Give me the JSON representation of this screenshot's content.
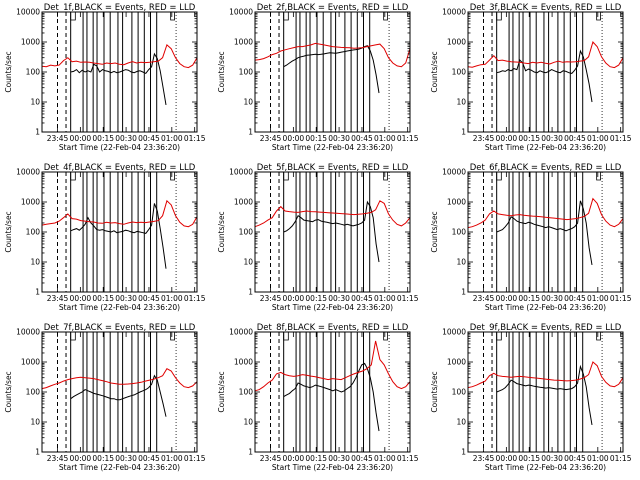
{
  "chart_data": [
    {
      "type": "line",
      "title": "Det_1f,BLACK = Events, RED = LLD",
      "xlabel": "Start Time (22-Feb-04 23:36:20)",
      "ylabel": "Counts/sec",
      "x_ticks": [
        "23:45",
        "00:00",
        "00:15",
        "00:30",
        "00:45",
        "01:00",
        "01:15"
      ],
      "y_ticks": [
        "1",
        "10",
        "100",
        "1000",
        "10000"
      ],
      "ylim": [
        1,
        10000
      ],
      "y_scale": "log",
      "series": [
        {
          "color": "#000000",
          "values": [
            100,
            105,
            120,
            95,
            115,
            100,
            110,
            100,
            180,
            160,
            100,
            120,
            110,
            105,
            95,
            105,
            95,
            100,
            110,
            120,
            115,
            100,
            95,
            105,
            110,
            100,
            90,
            120,
            150,
            400,
            280,
            110,
            30,
            8
          ]
        },
        {
          "color": "#e00000",
          "values": [
            155,
            150,
            170,
            160,
            170,
            240,
            300,
            220,
            230,
            210,
            215,
            210,
            200,
            190,
            180,
            200,
            190,
            200,
            180,
            175,
            200,
            220,
            200,
            210,
            205,
            210,
            220,
            230,
            300,
            800,
            600,
            300,
            190,
            150,
            140,
            170,
            300
          ]
        }
      ]
    },
    {
      "type": "line",
      "title": "Det_2f,BLACK = Events, RED = LLD",
      "xlabel": "Start Time (22-Feb-04 23:36:20)",
      "ylabel": "Counts/sec",
      "x_ticks": [
        "23:45",
        "00:00",
        "00:15",
        "00:30",
        "00:45",
        "01:00",
        "01:15"
      ],
      "y_ticks": [
        "1",
        "10",
        "100",
        "1000",
        "10000"
      ],
      "ylim": [
        1,
        10000
      ],
      "y_scale": "log",
      "series": [
        {
          "color": "#000000",
          "values": [
            150,
            170,
            200,
            230,
            260,
            300,
            320,
            340,
            360,
            370,
            380,
            390,
            380,
            390,
            400,
            420,
            440,
            430,
            420,
            440,
            460,
            480,
            500,
            520,
            540,
            560,
            580,
            620,
            700,
            750,
            500,
            250,
            80,
            20
          ]
        },
        {
          "color": "#e00000",
          "values": [
            250,
            260,
            280,
            320,
            380,
            420,
            500,
            550,
            600,
            650,
            700,
            700,
            750,
            800,
            900,
            850,
            800,
            750,
            700,
            680,
            660,
            650,
            640,
            620,
            630,
            650,
            700,
            750,
            800,
            850,
            600,
            300,
            200,
            160,
            150,
            200,
            600
          ]
        }
      ]
    },
    {
      "type": "line",
      "title": "Det_3f,BLACK = Events, RED = LLD",
      "xlabel": "Start Time (22-Feb-04 23:36:20)",
      "ylabel": "Counts/sec",
      "x_ticks": [
        "23:45",
        "00:00",
        "00:15",
        "00:30",
        "00:45",
        "01:00",
        "01:15"
      ],
      "y_ticks": [
        "1",
        "10",
        "100",
        "1000",
        "10000"
      ],
      "ylim": [
        1,
        10000
      ],
      "y_scale": "log",
      "series": [
        {
          "color": "#000000",
          "values": [
            95,
            100,
            110,
            105,
            120,
            110,
            130,
            120,
            250,
            200,
            110,
            125,
            115,
            100,
            95,
            110,
            100,
            95,
            105,
            120,
            110,
            100,
            95,
            110,
            105,
            95,
            90,
            115,
            160,
            500,
            320,
            120,
            40,
            10
          ]
        },
        {
          "color": "#e00000",
          "values": [
            150,
            145,
            160,
            175,
            180,
            250,
            350,
            240,
            250,
            230,
            220,
            215,
            210,
            200,
            190,
            210,
            200,
            210,
            195,
            185,
            210,
            230,
            210,
            220,
            215,
            220,
            230,
            240,
            320,
            1000,
            700,
            320,
            200,
            150,
            140,
            170,
            300
          ]
        }
      ]
    },
    {
      "type": "line",
      "title": "Det_4f,BLACK = Events, RED = LLD",
      "xlabel": "Start Time (22-Feb-04 23:36:20)",
      "ylabel": "Counts/sec",
      "x_ticks": [
        "23:45",
        "00:00",
        "00:15",
        "00:30",
        "00:45",
        "01:00",
        "01:15"
      ],
      "y_ticks": [
        "1",
        "10",
        "100",
        "1000",
        "10000"
      ],
      "ylim": [
        1,
        10000
      ],
      "y_scale": "log",
      "series": [
        {
          "color": "#000000",
          "values": [
            110,
            120,
            130,
            115,
            140,
            180,
            300,
            200,
            160,
            120,
            115,
            120,
            110,
            105,
            100,
            110,
            95,
            100,
            105,
            115,
            110,
            100,
            95,
            105,
            100,
            95,
            90,
            120,
            170,
            900,
            500,
            130,
            30,
            6
          ]
        },
        {
          "color": "#e00000",
          "values": [
            170,
            180,
            190,
            200,
            230,
            300,
            400,
            280,
            270,
            240,
            230,
            220,
            215,
            200,
            195,
            210,
            200,
            205,
            190,
            180,
            200,
            215,
            205,
            210,
            205,
            215,
            225,
            240,
            350,
            1100,
            800,
            350,
            210,
            160,
            150,
            180,
            320
          ]
        }
      ]
    },
    {
      "type": "line",
      "title": "Det_5f,BLACK = Events, RED = LLD",
      "xlabel": "Start Time (22-Feb-04 23:36:20)",
      "ylabel": "Counts/sec",
      "x_ticks": [
        "23:45",
        "00:00",
        "00:15",
        "00:30",
        "00:45",
        "01:00",
        "01:15"
      ],
      "y_ticks": [
        "1",
        "10",
        "100",
        "1000",
        "10000"
      ],
      "ylim": [
        1,
        10000
      ],
      "y_scale": "log",
      "series": [
        {
          "color": "#000000",
          "values": [
            100,
            110,
            130,
            160,
            220,
            350,
            300,
            250,
            240,
            230,
            220,
            250,
            260,
            230,
            220,
            210,
            200,
            190,
            200,
            190,
            180,
            170,
            180,
            170,
            160,
            170,
            180,
            200,
            250,
            1000,
            700,
            300,
            40,
            10
          ]
        },
        {
          "color": "#e00000",
          "values": [
            150,
            170,
            200,
            250,
            300,
            500,
            700,
            500,
            480,
            460,
            450,
            480,
            500,
            480,
            470,
            460,
            450,
            440,
            430,
            420,
            410,
            400,
            390,
            380,
            390,
            400,
            420,
            450,
            550,
            1100,
            900,
            400,
            250,
            180,
            160,
            200,
            300
          ]
        }
      ]
    },
    {
      "type": "line",
      "title": "Det_6f,BLACK = Events, RED = LLD",
      "xlabel": "Start Time (22-Feb-04 23:36:20)",
      "ylabel": "Counts/sec",
      "x_ticks": [
        "23:45",
        "00:00",
        "00:15",
        "00:30",
        "00:45",
        "01:00",
        "01:15"
      ],
      "y_ticks": [
        "1",
        "10",
        "100",
        "1000",
        "10000"
      ],
      "ylim": [
        1,
        10000
      ],
      "y_scale": "log",
      "series": [
        {
          "color": "#000000",
          "values": [
            100,
            110,
            120,
            150,
            200,
            320,
            280,
            230,
            210,
            200,
            190,
            210,
            200,
            180,
            170,
            160,
            150,
            140,
            150,
            140,
            130,
            120,
            130,
            120,
            110,
            120,
            130,
            150,
            200,
            1100,
            600,
            200,
            30,
            8
          ]
        },
        {
          "color": "#e00000",
          "values": [
            140,
            150,
            170,
            200,
            250,
            400,
            500,
            400,
            380,
            360,
            350,
            370,
            380,
            360,
            350,
            340,
            330,
            320,
            310,
            300,
            290,
            280,
            270,
            260,
            270,
            280,
            300,
            330,
            420,
            1300,
            900,
            380,
            230,
            170,
            150,
            180,
            280
          ]
        }
      ]
    },
    {
      "type": "line",
      "title": "Det_7f,BLACK = Events, RED = LLD",
      "xlabel": "Start Time (22-Feb-04 23:36:20)",
      "ylabel": "Counts/sec",
      "x_ticks": [
        "23:45",
        "00:00",
        "00:15",
        "00:30",
        "00:45",
        "01:00",
        "01:15"
      ],
      "y_ticks": [
        "1",
        "10",
        "100",
        "1000",
        "10000"
      ],
      "ylim": [
        1,
        10000
      ],
      "y_scale": "log",
      "series": [
        {
          "color": "#000000",
          "values": [
            60,
            70,
            80,
            90,
            100,
            120,
            110,
            100,
            90,
            85,
            80,
            75,
            70,
            65,
            60,
            60,
            55,
            55,
            60,
            65,
            70,
            75,
            80,
            90,
            100,
            110,
            120,
            140,
            180,
            350,
            250,
            100,
            40,
            15
          ]
        },
        {
          "color": "#e00000",
          "values": [
            130,
            140,
            160,
            180,
            200,
            230,
            260,
            280,
            300,
            310,
            300,
            290,
            280,
            260,
            240,
            220,
            200,
            190,
            180,
            180,
            185,
            190,
            200,
            210,
            230,
            250,
            270,
            300,
            350,
            600,
            500,
            300,
            200,
            150,
            140,
            160,
            220
          ]
        }
      ]
    },
    {
      "type": "line",
      "title": "Det_8f,BLACK = Events, RED = LLD",
      "xlabel": "Start Time (22-Feb-04 23:36:20)",
      "ylabel": "Counts/sec",
      "x_ticks": [
        "23:45",
        "00:00",
        "00:15",
        "00:30",
        "00:45",
        "01:00",
        "01:15"
      ],
      "y_ticks": [
        "1",
        "10",
        "100",
        "1000",
        "10000"
      ],
      "ylim": [
        1,
        10000
      ],
      "y_scale": "log",
      "series": [
        {
          "color": "#000000",
          "values": [
            70,
            80,
            90,
            110,
            130,
            200,
            180,
            160,
            150,
            140,
            150,
            170,
            160,
            150,
            140,
            130,
            120,
            110,
            120,
            110,
            100,
            110,
            130,
            150,
            200,
            300,
            500,
            800,
            900,
            600,
            300,
            100,
            20,
            5
          ]
        },
        {
          "color": "#e00000",
          "values": [
            110,
            120,
            150,
            200,
            250,
            400,
            450,
            380,
            350,
            330,
            350,
            380,
            360,
            340,
            320,
            300,
            280,
            260,
            280,
            270,
            260,
            300,
            350,
            400,
            450,
            500,
            600,
            800,
            5000,
            1200,
            800,
            400,
            220,
            150,
            130,
            150,
            220
          ]
        }
      ]
    },
    {
      "type": "line",
      "title": "Det_9f,BLACK = Events, RED = LLD",
      "xlabel": "Start Time (22-Feb-04 23:36:20)",
      "ylabel": "Counts/sec",
      "x_ticks": [
        "23:45",
        "00:00",
        "00:15",
        "00:30",
        "00:45",
        "01:00",
        "01:15"
      ],
      "y_ticks": [
        "1",
        "10",
        "100",
        "1000",
        "10000"
      ],
      "ylim": [
        1,
        10000
      ],
      "y_scale": "log",
      "series": [
        {
          "color": "#000000",
          "values": [
            100,
            110,
            120,
            140,
            180,
            250,
            220,
            190,
            180,
            170,
            160,
            170,
            165,
            155,
            150,
            145,
            140,
            135,
            140,
            135,
            130,
            125,
            130,
            125,
            120,
            125,
            130,
            150,
            200,
            700,
            400,
            150,
            30,
            8
          ]
        },
        {
          "color": "#e00000",
          "values": [
            140,
            150,
            170,
            200,
            230,
            350,
            420,
            350,
            330,
            320,
            310,
            320,
            330,
            320,
            310,
            300,
            290,
            280,
            270,
            260,
            250,
            245,
            240,
            235,
            240,
            250,
            270,
            300,
            380,
            1000,
            750,
            330,
            210,
            160,
            150,
            180,
            300
          ]
        }
      ]
    }
  ]
}
